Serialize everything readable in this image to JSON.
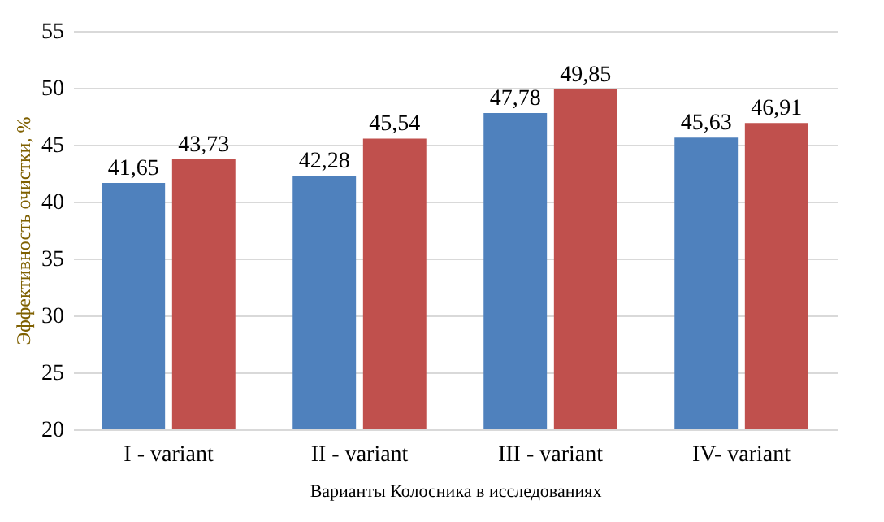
{
  "chart_data": {
    "type": "bar",
    "xlabel": "Варианты Колосника в исследованиях",
    "ylabel": "Эффективность очистки, %",
    "categories": [
      "I - variant",
      "II - variant",
      "III - variant",
      "IV- variant"
    ],
    "series": [
      {
        "color": "#4f81bd",
        "values": [
          41.65,
          42.28,
          47.78,
          45.63
        ],
        "value_labels": [
          "41,65",
          "42,28",
          "47,78",
          "45,63"
        ]
      },
      {
        "color": "#c0504d",
        "values": [
          43.73,
          45.54,
          49.85,
          46.91
        ],
        "value_labels": [
          "43,73",
          "45,54",
          "49,85",
          "46,91"
        ]
      }
    ],
    "ylim": [
      20,
      55
    ],
    "yticks": [
      20,
      25,
      30,
      35,
      40,
      45,
      50,
      55
    ],
    "grid": "y",
    "legend": false
  }
}
